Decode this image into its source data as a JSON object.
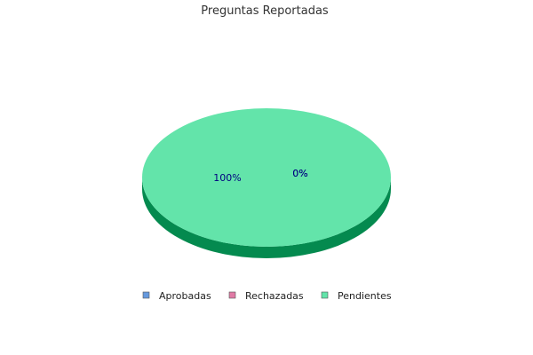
{
  "chart_data": {
    "type": "pie",
    "style": "3d",
    "title": "Preguntas Reportadas",
    "categories": [
      "Aprobadas",
      "Rechazadas",
      "Pendientes"
    ],
    "values": [
      0,
      0,
      100
    ],
    "data_labels": [
      "0%",
      "0%",
      "100%"
    ],
    "colors": [
      "#6699dd",
      "#e07aa5",
      "#63e4aa"
    ],
    "side_colors": [
      "#4477bb",
      "#b0507a",
      "#048a4f"
    ],
    "legend_position": "bottom"
  }
}
